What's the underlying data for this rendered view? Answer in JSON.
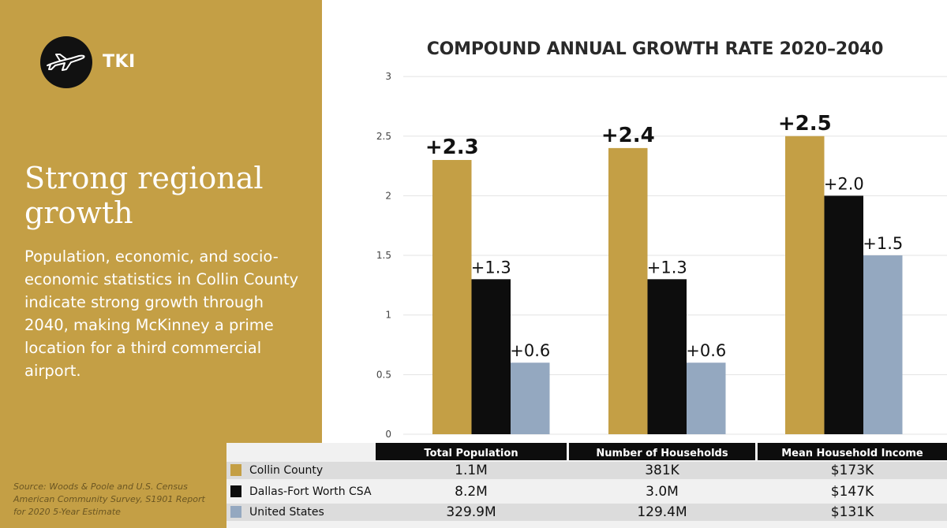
{
  "brand": {
    "name": "TKI",
    "icon": "airplane-icon"
  },
  "headline": "Strong regional growth",
  "body": "Population, economic, and socio-economic statistics in Collin County indicate strong growth through 2040, making McKinney a prime location for a third commercial airport.",
  "source": "Source: Woods & Poole and U.S. Census American Community Survey, S1901 Report for 2020 5-Year Estimate",
  "colors": {
    "panel": "#c49f45",
    "collin": "#c49f45",
    "dfw": "#0d0d0d",
    "us": "#94a8c0"
  },
  "chart_data": {
    "type": "bar",
    "title": "COMPOUND ANNUAL GROWTH RATE 2020–2040",
    "categories": [
      "Total Population",
      "Number of Households",
      "Mean Household Income"
    ],
    "series": [
      {
        "name": "Collin County",
        "values": [
          2.3,
          2.4,
          2.5
        ],
        "labels": [
          "+2.3",
          "+2.4",
          "+2.5"
        ]
      },
      {
        "name": "Dallas-Fort Worth CSA",
        "values": [
          1.3,
          1.3,
          2.0
        ],
        "labels": [
          "+1.3",
          "+1.3",
          "+2.0"
        ]
      },
      {
        "name": "United States",
        "values": [
          0.6,
          0.6,
          1.5
        ],
        "labels": [
          "+0.6",
          "+0.6",
          "+1.5"
        ]
      }
    ],
    "ylim": [
      0,
      3
    ],
    "yticks": [
      "0",
      "0.5",
      "1",
      "1.5",
      "2",
      "2.5",
      "3"
    ],
    "grid": true
  },
  "table": {
    "headers": [
      "Total Population",
      "Number of Households",
      "Mean Household Income"
    ],
    "rows": [
      {
        "label": "Collin County",
        "values": [
          "1.1M",
          "381K",
          "$173K"
        ]
      },
      {
        "label": "Dallas-Fort Worth CSA",
        "values": [
          "8.2M",
          "3.0M",
          "$147K"
        ]
      },
      {
        "label": "United States",
        "values": [
          "329.9M",
          "129.4M",
          "$131K"
        ]
      }
    ]
  }
}
